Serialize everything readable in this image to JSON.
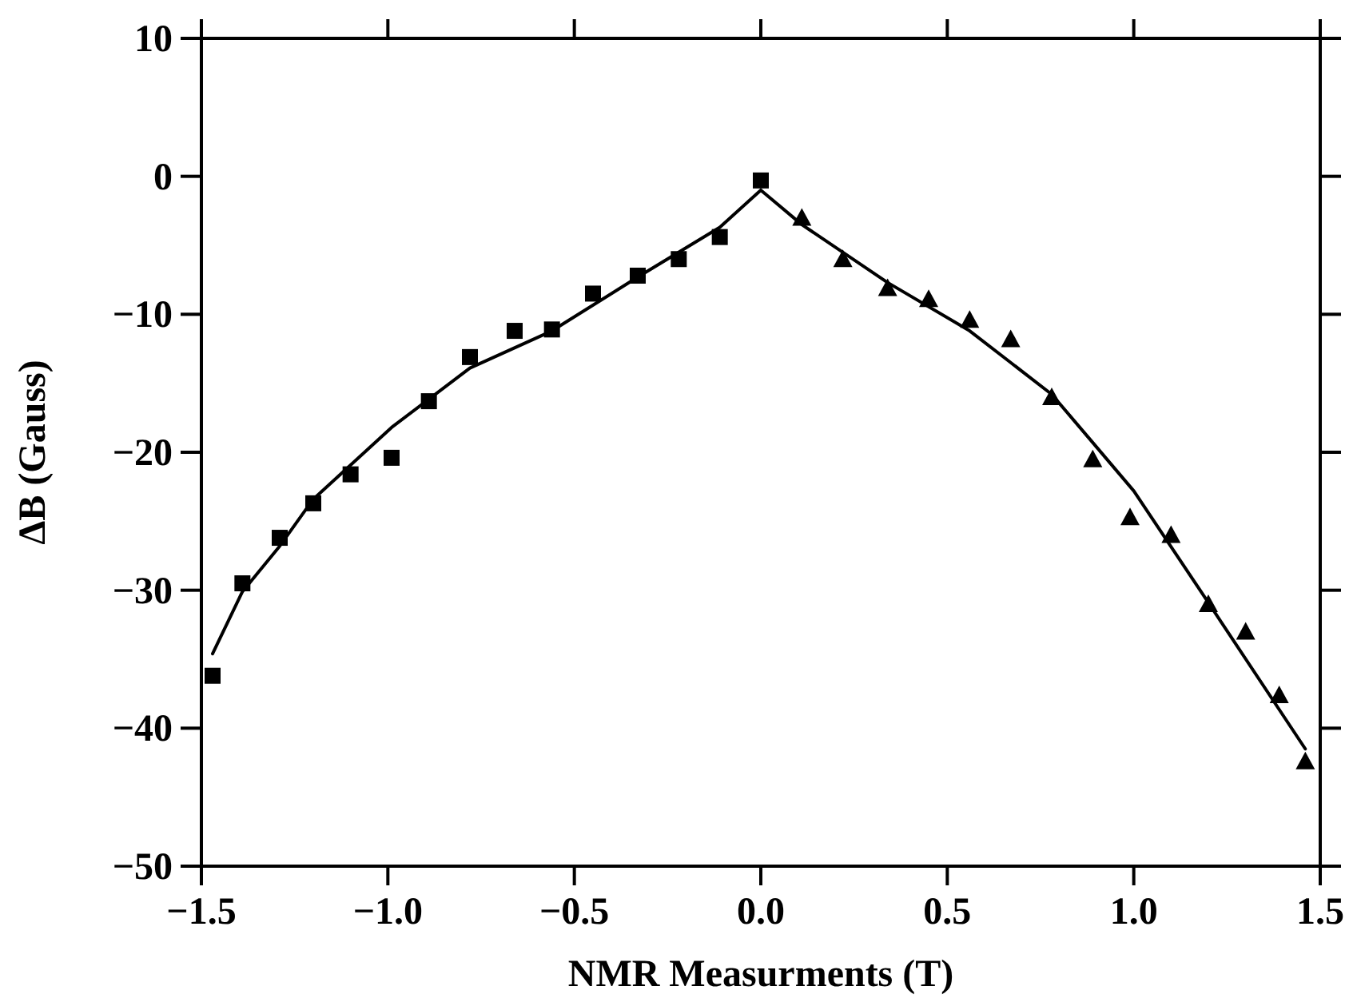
{
  "chart_data": {
    "type": "scatter",
    "xlabel": "NMR Measurments (T)",
    "ylabel": "ΔB (Gauss)",
    "xlim": [
      -1.5,
      1.5
    ],
    "ylim": [
      -50,
      10
    ],
    "xticks": [
      {
        "value": -1.5,
        "label": "−1.5"
      },
      {
        "value": -1,
        "label": "−1.0"
      },
      {
        "value": -0.5,
        "label": "−0.5"
      },
      {
        "value": 0,
        "label": "0.0"
      },
      {
        "value": 0.5,
        "label": "0.5"
      },
      {
        "value": 1,
        "label": "1.0"
      },
      {
        "value": 1.5,
        "label": "1.5"
      }
    ],
    "yticks": [
      {
        "value": -50,
        "label": "−50"
      },
      {
        "value": -40,
        "label": "−40"
      },
      {
        "value": -30,
        "label": "−30"
      },
      {
        "value": -20,
        "label": "−20"
      },
      {
        "value": -10,
        "label": "−10"
      },
      0,
      10
    ],
    "grid": false,
    "series": [
      {
        "marker": "square",
        "color": "#000000",
        "x": [
          -1.47,
          -1.39,
          -1.29,
          -1.2,
          -1.1,
          -0.99,
          -0.89,
          -0.78,
          -0.66,
          -0.56,
          -0.45,
          -0.33,
          -0.22,
          -0.11,
          0.0
        ],
        "values": [
          -36.2,
          -29.5,
          -26.2,
          -23.7,
          -21.6,
          -20.4,
          -16.3,
          -13.1,
          -11.2,
          -11.1,
          -8.5,
          -7.2,
          -6.0,
          -4.4,
          -0.3
        ]
      },
      {
        "marker": "triangle",
        "color": "#000000",
        "x": [
          0.11,
          0.22,
          0.34,
          0.45,
          0.56,
          0.67,
          0.78,
          0.89,
          0.99,
          1.1,
          1.2,
          1.3,
          1.39,
          1.46
        ],
        "values": [
          -3.0,
          -6.0,
          -8.1,
          -8.9,
          -10.4,
          -11.8,
          -16.0,
          -20.5,
          -24.7,
          -26.0,
          -31.0,
          -33.0,
          -37.6,
          -42.4
        ]
      },
      {
        "type": "line",
        "marker": "none",
        "line_style": "solid",
        "color": "#000000",
        "x": [
          -1.47,
          -1.39,
          -1.29,
          -1.2,
          -0.99,
          -0.78,
          -0.56,
          -0.33,
          -0.11,
          0.0,
          0.11,
          0.34,
          0.56,
          0.67,
          0.78,
          0.89,
          1.0,
          1.2,
          1.46
        ],
        "values": [
          -34.6,
          -30.1,
          -26.8,
          -23.4,
          -18.2,
          -13.9,
          -11.2,
          -7.3,
          -3.7,
          -1.0,
          -3.5,
          -7.7,
          -11.2,
          -13.5,
          -15.8,
          -19.3,
          -22.8,
          -30.9,
          -41.5
        ]
      }
    ]
  }
}
